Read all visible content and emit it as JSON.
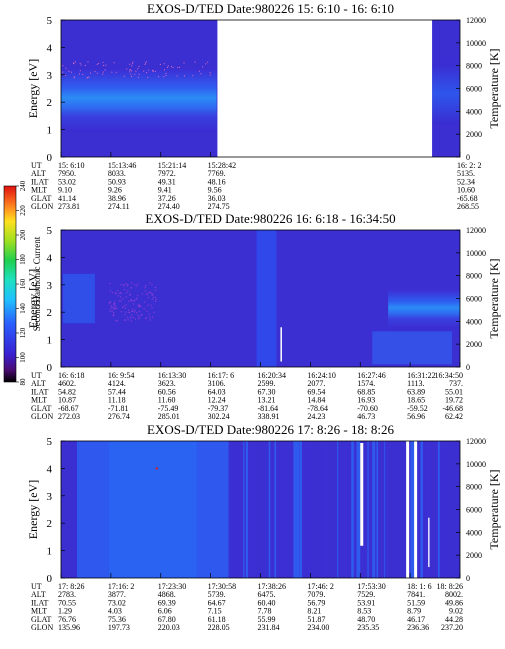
{
  "colorbar": {
    "label": "Second Harmonic Current",
    "ticks": [
      "80",
      "100",
      "120",
      "140",
      "160",
      "180",
      "200",
      "220",
      "240"
    ]
  },
  "chart_data": [
    {
      "type": "heatmap",
      "title": "EXOS-D/TED   Date:980226  15: 6:10 - 16: 6:10",
      "ylabel": "Energy [eV]",
      "ylabel2": "Temperature [K]",
      "ylim": [
        0,
        5
      ],
      "ylim2": [
        0,
        12000
      ],
      "yticks": [
        "0",
        "1",
        "2",
        "3",
        "4",
        "5"
      ],
      "yticks2": [
        "0",
        "2000",
        "4000",
        "6000",
        "8000",
        "10000",
        "12000"
      ],
      "gap": [
        0.6,
        0.9
      ],
      "time_rows": {
        "labels": [
          "UT",
          "ALT",
          "ILAT",
          "MLT",
          "GLAT",
          "GLON"
        ],
        "columns": [
          {
            "UT": "15: 6:10",
            "ALT": "7950.",
            "ILAT": "53.02",
            "MLT": "9.10",
            "GLAT": "41.14",
            "GLON": "273.81"
          },
          {
            "UT": "15:13:46",
            "ALT": "8033.",
            "ILAT": "50.93",
            "MLT": "9.26",
            "GLAT": "38.96",
            "GLON": "274.11"
          },
          {
            "UT": "15:21:14",
            "ALT": "7972.",
            "ILAT": "49.31",
            "MLT": "9.41",
            "GLAT": "37.26",
            "GLON": "274.40"
          },
          {
            "UT": "15:28:42",
            "ALT": "7769.",
            "ILAT": "48.16",
            "MLT": "9.56",
            "GLAT": "36.03",
            "GLON": "274.75"
          },
          {
            "UT": "16: 2: 2",
            "ALT": "5135.",
            "ILAT": "52.34",
            "MLT": "10.60",
            "GLAT": "-65.68",
            "GLON": "268.55"
          }
        ],
        "positions": [
          0.0,
          0.125,
          0.25,
          0.375,
          1.0
        ]
      }
    },
    {
      "type": "heatmap",
      "title": "EXOS-D/TED   Date:980226  16: 6:18 - 16:34:50",
      "ylabel": "Energy [eV]",
      "ylabel2": "Temperature [K]",
      "ylim": [
        0,
        5
      ],
      "ylim2": [
        0,
        12000
      ],
      "yticks": [
        "0",
        "1",
        "2",
        "3",
        "4",
        "5"
      ],
      "yticks2": [
        "0",
        "2000",
        "4000",
        "6000",
        "8000",
        "10000",
        "12000"
      ],
      "time_rows": {
        "labels": [
          "UT",
          "ALT",
          "ILAT",
          "MLT",
          "GLAT",
          "GLON"
        ],
        "columns": [
          {
            "UT": "16: 6:18",
            "ALT": "4602.",
            "ILAT": "54.82",
            "MLT": "10.87",
            "GLAT": "-68.67",
            "GLON": "272.03"
          },
          {
            "UT": "16: 9:54",
            "ALT": "4124.",
            "ILAT": "57.44",
            "MLT": "11.18",
            "GLAT": "-71.81",
            "GLON": "276.74"
          },
          {
            "UT": "16:13:30",
            "ALT": "3623.",
            "ILAT": "60.56",
            "MLT": "11.60",
            "GLAT": "-75.49",
            "GLON": "285.01"
          },
          {
            "UT": "16:17: 6",
            "ALT": "3106.",
            "ILAT": "64.03",
            "MLT": "12.24",
            "GLAT": "-79.37",
            "GLON": "302.24"
          },
          {
            "UT": "16:20:34",
            "ALT": "2599.",
            "ILAT": "67.30",
            "MLT": "13.21",
            "GLAT": "-81.64",
            "GLON": "338.91"
          },
          {
            "UT": "16:24:10",
            "ALT": "2077.",
            "ILAT": "69.54",
            "MLT": "14.84",
            "GLAT": "-78.64",
            "GLON": "24.23"
          },
          {
            "UT": "16:27:46",
            "ALT": "1574.",
            "ILAT": "68.85",
            "MLT": "16.93",
            "GLAT": "-70.60",
            "GLON": "46.73"
          },
          {
            "UT": "16:31:22",
            "ALT": "1113.",
            "ILAT": "63.89",
            "MLT": "18.65",
            "GLAT": "-59.52",
            "GLON": "56.96"
          },
          {
            "UT": "16:34:50",
            "ALT": "737.",
            "ILAT": "55.01",
            "MLT": "19.72",
            "GLAT": "-46.68",
            "GLON": "62.42"
          }
        ],
        "positions": [
          0.0,
          0.125,
          0.25,
          0.375,
          0.5,
          0.625,
          0.75,
          0.875,
          1.0
        ]
      }
    },
    {
      "type": "heatmap",
      "title": "EXOS-D/TED   Date:980226  17: 8:26 - 18: 8:26",
      "ylabel": "Energy [eV]",
      "ylabel2": "Temperature [K]",
      "ylim": [
        0,
        5
      ],
      "ylim2": [
        0,
        12000
      ],
      "yticks": [
        "0",
        "1",
        "2",
        "3",
        "4",
        "5"
      ],
      "yticks2": [
        "0",
        "2000",
        "4000",
        "6000",
        "8000",
        "10000",
        "12000"
      ],
      "time_rows": {
        "labels": [
          "UT",
          "ALT",
          "ILAT",
          "MLT",
          "GLAT",
          "GLON"
        ],
        "columns": [
          {
            "UT": "17: 8:26",
            "ALT": "2783.",
            "ILAT": "70.55",
            "MLT": "1.29",
            "GLAT": "76.76",
            "GLON": "135.96"
          },
          {
            "UT": "17:16: 2",
            "ALT": "3877.",
            "ILAT": "73.02",
            "MLT": "4.03",
            "GLAT": "75.36",
            "GLON": "197.73"
          },
          {
            "UT": "17:23:30",
            "ALT": "4868.",
            "ILAT": "69.39",
            "MLT": "6.06",
            "GLAT": "67.80",
            "GLON": "220.03"
          },
          {
            "UT": "17:30:58",
            "ALT": "5739.",
            "ILAT": "64.67",
            "MLT": "7.15",
            "GLAT": "61.18",
            "GLON": "228.05"
          },
          {
            "UT": "17:38:26",
            "ALT": "6475.",
            "ILAT": "60.40",
            "MLT": "7.78",
            "GLAT": "55.99",
            "GLON": "231.84"
          },
          {
            "UT": "17:46: 2",
            "ALT": "7079.",
            "ILAT": "56.79",
            "MLT": "8.21",
            "GLAT": "51.87",
            "GLON": "234.00"
          },
          {
            "UT": "17:53:30",
            "ALT": "7529.",
            "ILAT": "53.91",
            "MLT": "8.53",
            "GLAT": "48.70",
            "GLON": "235.35"
          },
          {
            "UT": "18: 1: 6",
            "ALT": "7841.",
            "ILAT": "51.59",
            "MLT": "8.79",
            "GLAT": "46.17",
            "GLON": "236.36"
          },
          {
            "UT": "18: 8:26",
            "ALT": "8002.",
            "ILAT": "49.86",
            "MLT": "9.02",
            "GLAT": "44.28",
            "GLON": "237.20"
          }
        ],
        "positions": [
          0.0,
          0.125,
          0.25,
          0.375,
          0.5,
          0.625,
          0.75,
          0.875,
          1.0
        ]
      }
    }
  ]
}
